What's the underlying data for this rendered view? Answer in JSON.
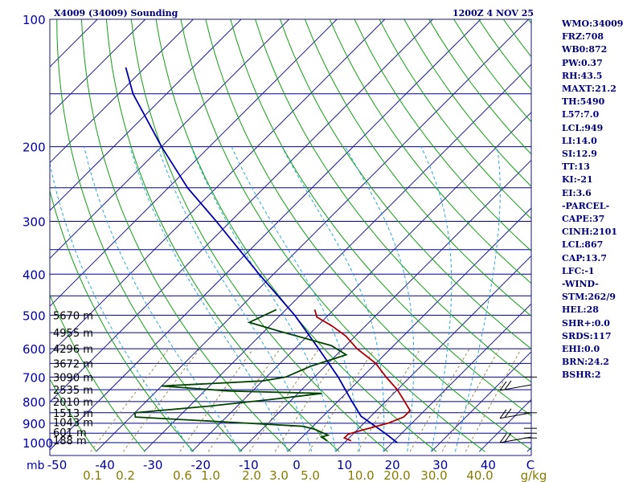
{
  "header": {
    "title": "X4009 (34009) Sounding",
    "datetime": "1200Z  4 NOV 25"
  },
  "colors": {
    "isobar": "#00008b",
    "isotherm": "#1a1a9c",
    "dry_adiabat": "#11a011",
    "moist_adiabat": "#2aa8d8",
    "mixing_ratio": "#9a8a50",
    "temperature": "#aa0000",
    "dewpoint": "#004400",
    "parcel": "#0000aa"
  },
  "stats": [
    "WMO:34009",
    "FRZ:708",
    "WB0:872",
    "PW:0.37",
    "RH:43.5",
    "MAXT:21.2",
    "TH:5490",
    "L57:7.0",
    "LCL:949",
    "LI:14.0",
    "SI:12.9",
    "TT:13",
    "KI:-21",
    "EI:3.6",
    "-PARCEL-",
    "CAPE:37",
    "CINH:2101",
    "LCL:867",
    "CAP:13.7",
    "LFC:-1",
    "-WIND-",
    "STM:262/9",
    "HEL:28",
    "SHR+:0.0",
    "SRDS:117",
    "EHI:0.0",
    "BRN:24.2",
    "BSHR:2"
  ],
  "chart_data": {
    "type": "skew-t",
    "title": "X4009 (34009) Sounding",
    "pressure_axis_unit": "mb",
    "pressure_ticks": [
      100,
      200,
      300,
      400,
      500,
      600,
      700,
      800,
      900,
      1000
    ],
    "temperature_ticks": [
      "-50",
      "-40",
      "-30",
      "-20",
      "-10",
      "0",
      "10",
      "20",
      "30",
      "40"
    ],
    "temperature_unit": "C",
    "mixing_ratio_ticks": [
      "0.1",
      "0.2",
      "0.6",
      "1.0",
      "2.0",
      "3.0",
      "5.0",
      "10.0",
      "20.0",
      "30.0",
      "40.0"
    ],
    "mixing_ratio_unit": "g/kg",
    "height_labels": [
      {
        "p": 988,
        "label": "188 m"
      },
      {
        "p": 945,
        "label": "601 m"
      },
      {
        "p": 895,
        "label": "1043 m"
      },
      {
        "p": 850,
        "label": "1513 m"
      },
      {
        "p": 800,
        "label": "2010 m"
      },
      {
        "p": 750,
        "label": "2535 m"
      },
      {
        "p": 700,
        "label": "3090 m"
      },
      {
        "p": 650,
        "label": "3672 m"
      },
      {
        "p": 600,
        "label": "4296 m"
      },
      {
        "p": 550,
        "label": "4955 m"
      },
      {
        "p": 500,
        "label": "5670 m"
      }
    ],
    "temperature_profile": [
      {
        "p": 990,
        "t": 11
      },
      {
        "p": 975,
        "t": 9
      },
      {
        "p": 955,
        "t": 9
      },
      {
        "p": 935,
        "t": 11
      },
      {
        "p": 900,
        "t": 15
      },
      {
        "p": 870,
        "t": 17
      },
      {
        "p": 840,
        "t": 17
      },
      {
        "p": 800,
        "t": 14
      },
      {
        "p": 750,
        "t": 10
      },
      {
        "p": 700,
        "t": 5
      },
      {
        "p": 650,
        "t": 0
      },
      {
        "p": 600,
        "t": -7
      },
      {
        "p": 560,
        "t": -12
      },
      {
        "p": 530,
        "t": -17
      },
      {
        "p": 505,
        "t": -22
      },
      {
        "p": 485,
        "t": -24
      }
    ],
    "dewpoint_profile": [
      {
        "p": 990,
        "t": 6
      },
      {
        "p": 970,
        "t": 4
      },
      {
        "p": 960,
        "t": 5
      },
      {
        "p": 930,
        "t": 1
      },
      {
        "p": 915,
        "t": -2
      },
      {
        "p": 900,
        "t": -14
      },
      {
        "p": 870,
        "t": -39
      },
      {
        "p": 850,
        "t": -40
      },
      {
        "p": 820,
        "t": -26
      },
      {
        "p": 790,
        "t": -14
      },
      {
        "p": 765,
        "t": -5
      },
      {
        "p": 755,
        "t": -25
      },
      {
        "p": 735,
        "t": -40
      },
      {
        "p": 715,
        "t": -20
      },
      {
        "p": 700,
        "t": -16
      },
      {
        "p": 660,
        "t": -13
      },
      {
        "p": 620,
        "t": -8
      },
      {
        "p": 590,
        "t": -13
      },
      {
        "p": 545,
        "t": -27
      },
      {
        "p": 520,
        "t": -35
      },
      {
        "p": 485,
        "t": -32
      }
    ],
    "parcel_profile": [
      {
        "p": 1000,
        "t": 21
      },
      {
        "p": 950,
        "t": 16.5
      },
      {
        "p": 900,
        "t": 11.5
      },
      {
        "p": 867,
        "t": 8
      },
      {
        "p": 800,
        "t": 3
      },
      {
        "p": 700,
        "t": -5
      },
      {
        "p": 600,
        "t": -15
      },
      {
        "p": 500,
        "t": -27
      },
      {
        "p": 400,
        "t": -43
      },
      {
        "p": 300,
        "t": -63
      },
      {
        "p": 250,
        "t": -76
      },
      {
        "p": 200,
        "t": -90
      },
      {
        "p": 150,
        "t": -107
      },
      {
        "p": 130,
        "t": -114
      }
    ],
    "wind_barbs": [
      {
        "p": 730,
        "dir": "NW"
      },
      {
        "p": 850,
        "dir": "NW"
      },
      {
        "p": 970,
        "dir": "NW"
      }
    ]
  }
}
